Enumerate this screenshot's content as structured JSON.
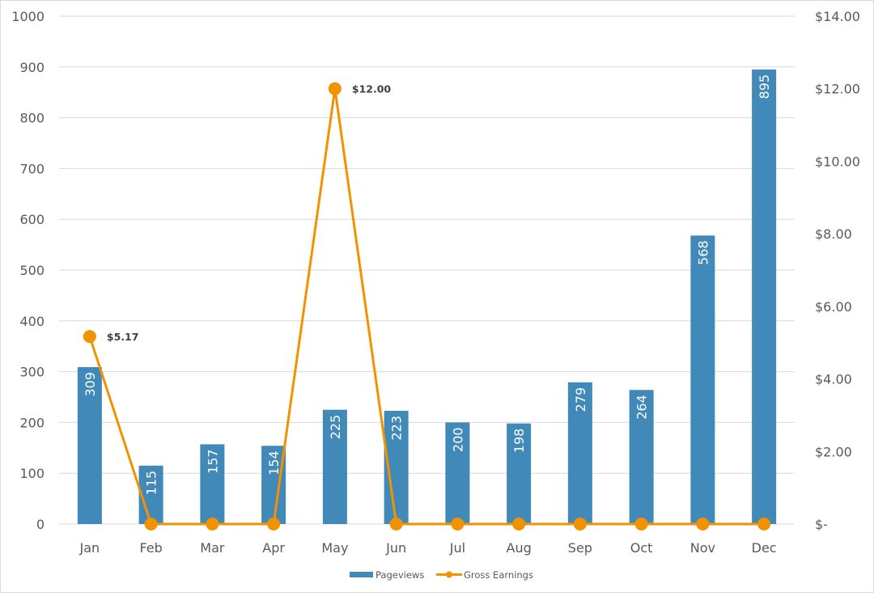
{
  "chart_data": {
    "type": "bar+line",
    "title": "",
    "categories": [
      "Jan",
      "Feb",
      "Mar",
      "Apr",
      "May",
      "Jun",
      "Jul",
      "Aug",
      "Sep",
      "Oct",
      "Nov",
      "Dec"
    ],
    "series": [
      {
        "name": "Pageviews",
        "type": "bar",
        "axis": "left",
        "color": "#4189b8",
        "values": [
          309,
          115,
          157,
          154,
          225,
          223,
          200,
          198,
          279,
          264,
          568,
          895
        ],
        "data_labels": [
          "309",
          "115",
          "157",
          "154",
          "225",
          "223",
          "200",
          "198",
          "279",
          "264",
          "568",
          "895"
        ]
      },
      {
        "name": "Gross Earnings",
        "type": "line",
        "axis": "right",
        "color": "#f39200",
        "values": [
          5.17,
          0,
          0,
          0,
          12.0,
          0,
          0,
          0,
          0,
          0,
          0,
          0
        ],
        "data_labels": [
          "$5.17",
          "",
          "",
          "",
          "$12.00",
          "",
          "",
          "",
          "",
          "",
          "",
          ""
        ]
      }
    ],
    "left_axis": {
      "label": "",
      "ylim": [
        0,
        1000
      ],
      "ticks": [
        "0",
        "100",
        "200",
        "300",
        "400",
        "500",
        "600",
        "700",
        "800",
        "900",
        "1000"
      ]
    },
    "right_axis": {
      "label": "",
      "ylim": [
        0,
        14
      ],
      "ticks": [
        "$-",
        "$2.00",
        "$4.00",
        "$6.00",
        "$8.00",
        "$10.00",
        "$12.00",
        "$14.00"
      ]
    },
    "xlabel": "",
    "grid": true,
    "legend": {
      "position": "bottom",
      "entries": [
        "Pageviews",
        "Gross Earnings"
      ]
    }
  }
}
